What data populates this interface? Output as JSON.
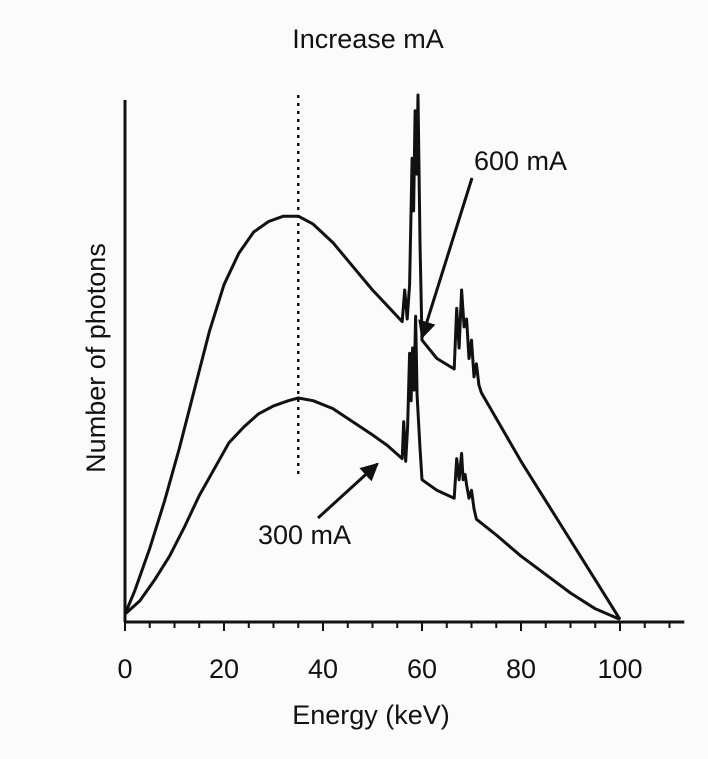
{
  "chart_data": {
    "type": "line",
    "title": "Increase mA",
    "xlabel": "Energy (keV)",
    "ylabel": "Number of photons",
    "xlim": [
      0,
      113
    ],
    "ylim": [
      0,
      100
    ],
    "x_ticks": [
      0,
      20,
      40,
      60,
      80,
      100
    ],
    "x_tick_labels": [
      "0",
      "20",
      "40",
      "60",
      "80",
      "100"
    ],
    "y_ticks_shown": false,
    "grid": false,
    "legend": "none",
    "series": [
      {
        "name": "600 mA",
        "x": [
          0,
          2,
          5,
          8,
          11,
          14,
          17,
          20,
          23,
          26,
          29,
          32,
          35,
          38,
          42,
          46,
          50,
          53,
          56,
          56.5,
          57,
          57.5,
          58,
          58.3,
          58.6,
          58.9,
          59.2,
          59.6,
          60,
          63,
          66.5,
          67,
          67.5,
          68,
          68.5,
          69,
          69.5,
          70,
          70.5,
          71,
          71.5,
          72,
          76,
          80,
          84,
          88,
          92,
          96,
          100
        ],
        "y": [
          1.5,
          6,
          14,
          23,
          33,
          44,
          55,
          64,
          70,
          74,
          76,
          77,
          77,
          75.5,
          72,
          67.5,
          63,
          60,
          57,
          63,
          57.5,
          64,
          88,
          78,
          97,
          85,
          100,
          72,
          53.5,
          50,
          48,
          59.5,
          52,
          63,
          56,
          57.5,
          50,
          53.5,
          46.5,
          49,
          45,
          43.5,
          37,
          30.5,
          24.5,
          18.5,
          12.5,
          6.5,
          0.5
        ]
      },
      {
        "name": "300 mA",
        "x": [
          0,
          3,
          6,
          9,
          12,
          15,
          18,
          21,
          24,
          27,
          30,
          33,
          35,
          38,
          42,
          46,
          50,
          53,
          56,
          56.3,
          56.7,
          57.1,
          57.5,
          57.8,
          58.1,
          58.4,
          58.7,
          59,
          59.6,
          60,
          63,
          66.5,
          67,
          67.5,
          68,
          68.3,
          68.7,
          69,
          69.5,
          70,
          70.5,
          71,
          75,
          80,
          85,
          90,
          95,
          100
        ],
        "y": [
          1.5,
          4,
          8,
          12.5,
          18,
          24,
          29,
          34,
          37,
          39.5,
          41,
          42,
          42.5,
          42,
          40.5,
          38,
          35.5,
          33.5,
          31,
          38,
          30.5,
          37,
          51,
          42,
          52,
          44,
          58,
          43,
          33,
          27,
          25,
          23.5,
          31,
          27,
          32,
          27,
          28,
          26,
          23.5,
          25,
          21.5,
          19.5,
          16.5,
          12.5,
          9,
          5.5,
          2.5,
          0.5
        ]
      }
    ],
    "annotations": [
      {
        "text": "600 mA",
        "points_to": [
          60,
          54
        ]
      },
      {
        "text": "300 mA",
        "points_to": [
          51,
          30
        ]
      }
    ],
    "reference_lines": [
      {
        "type": "vertical",
        "x": 35,
        "y_range": [
          28,
          100
        ],
        "style": "dotted"
      }
    ]
  }
}
